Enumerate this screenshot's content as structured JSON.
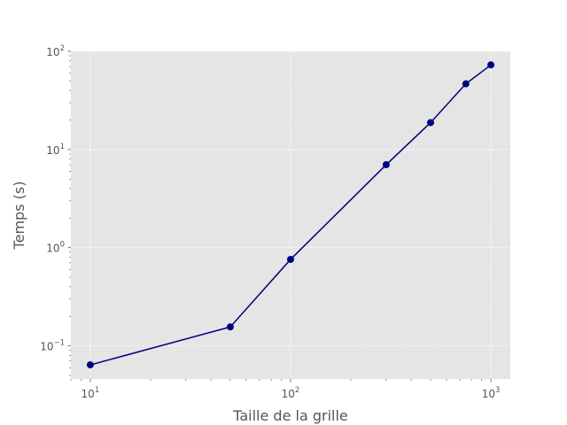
{
  "chart_data": {
    "type": "line",
    "xlabel": "Taille de la grille",
    "ylabel": "Temps (s)",
    "x_scale": "log",
    "y_scale": "log",
    "xlim": [
      8,
      1250
    ],
    "ylim": [
      0.046,
      100
    ],
    "grid": true,
    "x_ticks": [
      {
        "base": "10",
        "exp": "1",
        "value": 10
      },
      {
        "base": "10",
        "exp": "2",
        "value": 100
      },
      {
        "base": "10",
        "exp": "3",
        "value": 1000
      }
    ],
    "y_ticks": [
      {
        "base": "10",
        "exp": "−1",
        "value": 0.1
      },
      {
        "base": "10",
        "exp": "0",
        "value": 1
      },
      {
        "base": "10",
        "exp": "1",
        "value": 10
      },
      {
        "base": "10",
        "exp": "2",
        "value": 100
      }
    ],
    "series": [
      {
        "color": "#000080",
        "x": [
          10,
          50,
          100,
          300,
          500,
          750,
          1000
        ],
        "y": [
          0.064,
          0.156,
          0.76,
          7.0,
          18.8,
          46.7,
          72.8
        ]
      }
    ]
  }
}
